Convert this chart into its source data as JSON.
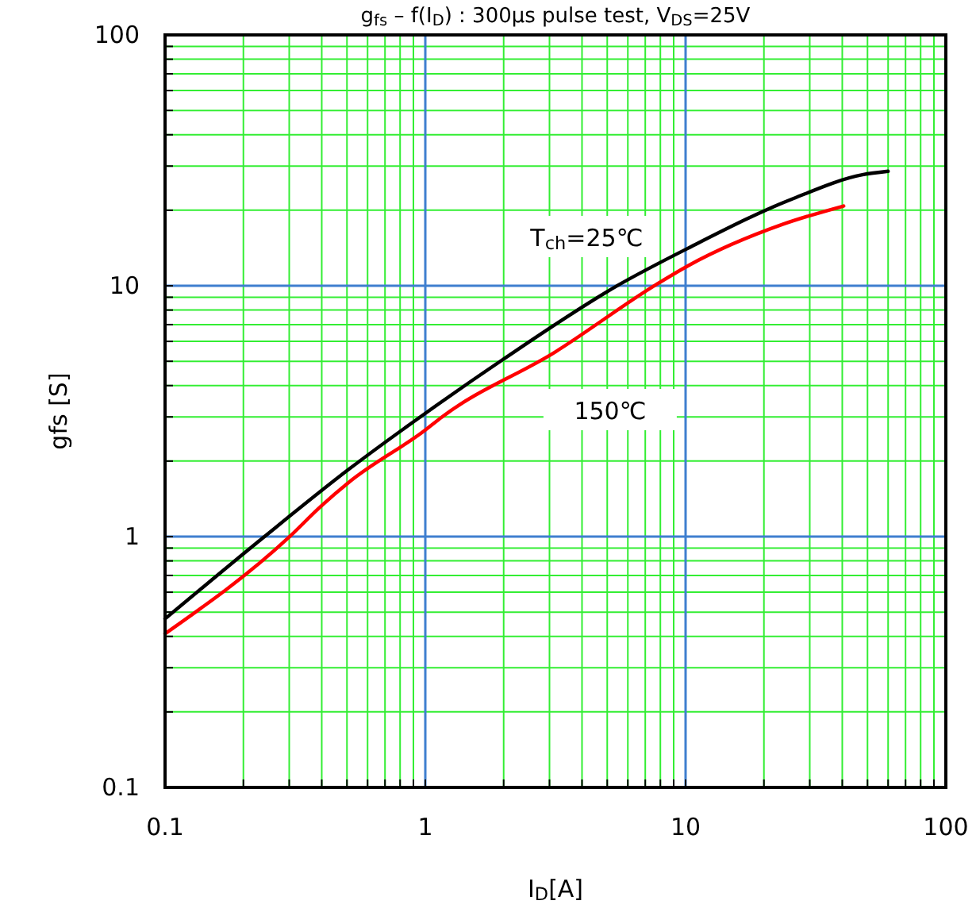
{
  "chart_data": {
    "type": "line",
    "title": "g$_{fs}$ – f(I$_{D}$) : 300μs pulse test, V$_{DS}$=25V",
    "xlabel": "I$_{D}$[A]",
    "ylabel": "gfs  [S]",
    "log": "xy",
    "grid": true,
    "marker": "none",
    "line_style": "solid",
    "xlim": [
      0.1,
      100
    ],
    "xticks": [
      0.1,
      {
        "value": 0.2,
        "label": null
      },
      {
        "value": 0.3,
        "label": null
      },
      {
        "value": 0.4,
        "label": null
      },
      {
        "value": 0.5,
        "label": null
      },
      {
        "value": 0.6,
        "label": null
      },
      {
        "value": 0.7,
        "label": null
      },
      {
        "value": 0.8,
        "label": null
      },
      {
        "value": 0.9,
        "label": null
      },
      1,
      {
        "value": 2,
        "label": null
      },
      {
        "value": 3,
        "label": null
      },
      {
        "value": 4,
        "label": null
      },
      {
        "value": 5,
        "label": null
      },
      {
        "value": 6,
        "label": null
      },
      {
        "value": 7,
        "label": null
      },
      {
        "value": 8,
        "label": null
      },
      {
        "value": 9,
        "label": null
      },
      10,
      {
        "value": 20,
        "label": null
      },
      {
        "value": 30,
        "label": null
      },
      {
        "value": 40,
        "label": null
      },
      {
        "value": 50,
        "label": null
      },
      {
        "value": 60,
        "label": null
      },
      {
        "value": 70,
        "label": null
      },
      {
        "value": 80,
        "label": null
      },
      {
        "value": 90,
        "label": null
      },
      100
    ],
    "ylim": [
      0.1,
      100
    ],
    "yticks": [
      0.1,
      {
        "value": 0.2,
        "label": null
      },
      {
        "value": 0.3,
        "label": null
      },
      {
        "value": 0.4,
        "label": null
      },
      {
        "value": 0.5,
        "label": null
      },
      {
        "value": 0.6,
        "label": null
      },
      {
        "value": 0.7,
        "label": null
      },
      {
        "value": 0.8,
        "label": null
      },
      {
        "value": 0.9,
        "label": null
      },
      1,
      {
        "value": 2,
        "label": null
      },
      {
        "value": 3,
        "label": null
      },
      {
        "value": 4,
        "label": null
      },
      {
        "value": 5,
        "label": null
      },
      {
        "value": 6,
        "label": null
      },
      {
        "value": 7,
        "label": null
      },
      {
        "value": 8,
        "label": null
      },
      {
        "value": 9,
        "label": null
      },
      10,
      {
        "value": 20,
        "label": null
      },
      {
        "value": 30,
        "label": null
      },
      {
        "value": 40,
        "label": null
      },
      {
        "value": 50,
        "label": null
      },
      {
        "value": 60,
        "label": null
      },
      {
        "value": 70,
        "label": null
      },
      {
        "value": 80,
        "label": null
      },
      {
        "value": 90,
        "label": null
      },
      100
    ],
    "series": [
      {
        "name": "T$_{ch}$=25℃",
        "color": "#000000",
        "x": [
          0.1,
          0.241,
          0.51,
          1,
          1.98,
          5.55,
          10.2,
          26,
          47.8,
          60
        ],
        "values": [
          0.47,
          1,
          1.86,
          3.1,
          5.07,
          10.1,
          14.1,
          22.3,
          27.7,
          28.6
        ]
      },
      {
        "name": "150℃",
        "color": "#ff0000",
        "x": [
          0.1,
          0.298,
          0.4,
          0.51,
          1,
          1.16,
          3.16,
          7.7,
          10.2,
          23.7,
          40.5
        ],
        "values": [
          0.41,
          0.99,
          1.33,
          1.65,
          2.66,
          3.0,
          5.45,
          10.1,
          12,
          17.6,
          20.8
        ]
      }
    ]
  }
}
